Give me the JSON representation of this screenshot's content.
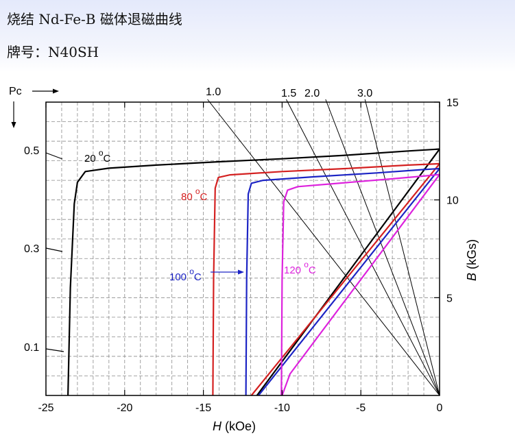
{
  "header": {
    "title": "烧结 Nd-Fe-B 磁体退磁曲线",
    "subtitle": "牌号：N40SH"
  },
  "chart_data": {
    "type": "line",
    "x_axis": {
      "label_italic": "H",
      "label_unit": " (kOe)",
      "range": [
        -25,
        0
      ],
      "ticks": [
        -25,
        -20,
        -15,
        -10,
        -5,
        0
      ],
      "tick_labels": [
        "-25",
        "-20",
        "-15",
        "-10",
        "-5",
        "0"
      ]
    },
    "y_axis_right": {
      "label_italic": "B",
      "label_unit": " (kGs)",
      "range": [
        0,
        15
      ],
      "ticks": [
        5,
        10,
        15
      ],
      "tick_labels": [
        "5",
        "10",
        "15"
      ]
    },
    "pc_axis": {
      "label": "Pc",
      "ticks": [
        0.1,
        0.3,
        0.5
      ],
      "tick_labels": [
        "0.1",
        "0.3",
        "0.5"
      ]
    },
    "load_lines": [
      {
        "label": "1.0",
        "pc": 1.0
      },
      {
        "label": "1.5",
        "pc": 1.5
      },
      {
        "label": "2.0",
        "pc": 2.0
      },
      {
        "label": "3.0",
        "pc": 3.0
      }
    ],
    "grid": true,
    "colors": {
      "20C": "#000000",
      "80C": "#d42020",
      "100C": "#1c24c4",
      "120C": "#dd22dd",
      "loadline": "#000000",
      "grid": "#8a8a8a"
    },
    "series": [
      {
        "name": "20 °C",
        "label_main": "20 ",
        "label_sup": "o",
        "label_tail": "C",
        "color_key": "20C",
        "J": [
          [
            -23.6,
            0
          ],
          [
            -23.45,
            5.5
          ],
          [
            -23.2,
            9.8
          ],
          [
            -23.0,
            10.9
          ],
          [
            -22.5,
            11.45
          ],
          [
            -21.0,
            11.62
          ],
          [
            -18.0,
            11.78
          ],
          [
            -14.0,
            11.95
          ],
          [
            -10.0,
            12.1
          ],
          [
            -6.0,
            12.28
          ],
          [
            -2.0,
            12.5
          ],
          [
            0,
            12.6
          ]
        ],
        "B": [
          [
            -11.6,
            0
          ],
          [
            0,
            12.6
          ]
        ]
      },
      {
        "name": "80 °C",
        "label_main": "80 ",
        "label_sup": "o",
        "label_tail": "C",
        "color_key": "80C",
        "J": [
          [
            -14.4,
            0
          ],
          [
            -14.35,
            6.0
          ],
          [
            -14.25,
            10.6
          ],
          [
            -14.05,
            11.15
          ],
          [
            -13.3,
            11.28
          ],
          [
            -10.0,
            11.45
          ],
          [
            -6.0,
            11.6
          ],
          [
            -2.0,
            11.78
          ],
          [
            0,
            11.85
          ]
        ],
        "B": [
          [
            -11.95,
            0
          ],
          [
            0,
            11.85
          ]
        ]
      },
      {
        "name": "100 °C",
        "label_main": "100 ",
        "label_sup": "o",
        "label_tail": "C",
        "color_key": "100C",
        "J": [
          [
            -12.3,
            0
          ],
          [
            -12.25,
            6.0
          ],
          [
            -12.15,
            10.3
          ],
          [
            -11.95,
            10.85
          ],
          [
            -11.2,
            11.0
          ],
          [
            -8.0,
            11.18
          ],
          [
            -4.0,
            11.38
          ],
          [
            -1.0,
            11.55
          ],
          [
            0,
            11.6
          ]
        ],
        "B": [
          [
            -11.5,
            0
          ],
          [
            0,
            11.6
          ]
        ]
      },
      {
        "name": "120 °C",
        "label_main": "120 ",
        "label_sup": "o",
        "label_tail": "C",
        "color_key": "120C",
        "J": [
          [
            -10.05,
            0
          ],
          [
            -10.0,
            6.0
          ],
          [
            -9.9,
            9.9
          ],
          [
            -9.65,
            10.5
          ],
          [
            -9.0,
            10.68
          ],
          [
            -6.0,
            10.88
          ],
          [
            -3.0,
            11.08
          ],
          [
            -1.0,
            11.22
          ],
          [
            0,
            11.3
          ]
        ],
        "B": [
          [
            -10.0,
            0
          ],
          [
            -9.5,
            1.1
          ],
          [
            0,
            11.3
          ]
        ]
      }
    ],
    "arrow_label": "100 °C"
  }
}
